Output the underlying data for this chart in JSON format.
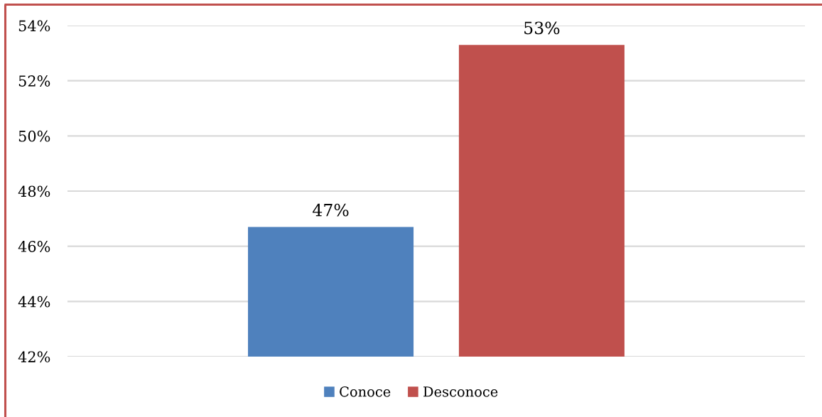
{
  "chart_data": {
    "type": "bar",
    "categories": [
      null
    ],
    "series": [
      {
        "name": "Conoce",
        "color": "#4f81bd",
        "values": [
          46.7
        ],
        "value_labels": [
          "47%"
        ]
      },
      {
        "name": "Desconoce",
        "color": "#c0504d",
        "values": [
          53.3
        ],
        "value_labels": [
          "53%"
        ]
      }
    ],
    "ylim": [
      42,
      54
    ],
    "yticks": [
      {
        "value": 42,
        "label": "42%"
      },
      {
        "value": 44,
        "label": "44%"
      },
      {
        "value": 46,
        "label": "46%"
      },
      {
        "value": 48,
        "label": "48%"
      },
      {
        "value": 50,
        "label": "50%"
      },
      {
        "value": 52,
        "label": "52%"
      },
      {
        "value": 54,
        "label": "54%"
      }
    ],
    "grid": "y",
    "legend": "bottom"
  }
}
